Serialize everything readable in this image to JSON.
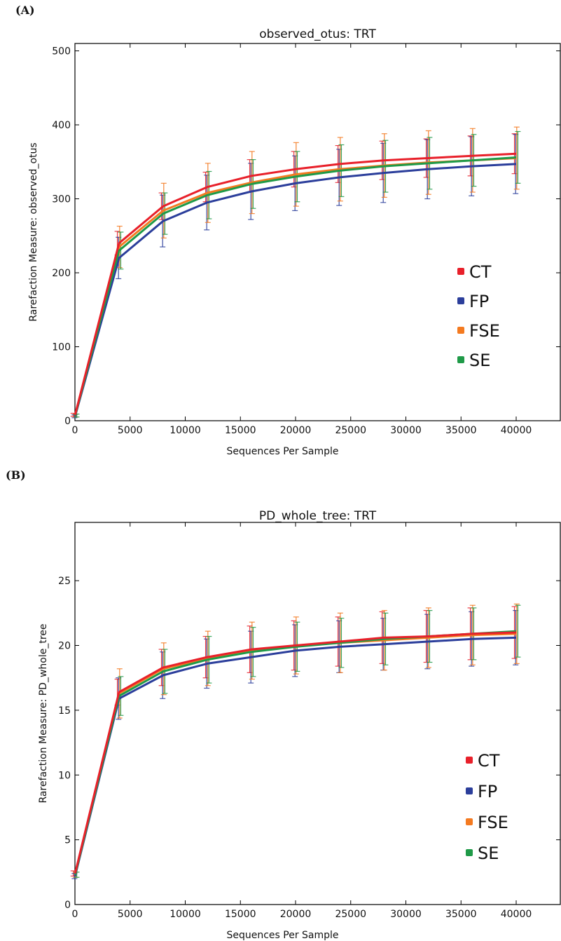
{
  "figure": {
    "panel_labels": [
      "(A)",
      "(B)"
    ]
  },
  "chart_data": [
    {
      "type": "line",
      "panel": "(A)",
      "title": "observed_otus: TRT",
      "xlabel": "Sequences Per Sample",
      "ylabel": "Rarefaction Measure: observed_otus",
      "xlim": [
        0,
        44000
      ],
      "ylim": [
        0,
        510
      ],
      "xticks": [
        0,
        5000,
        10000,
        15000,
        20000,
        25000,
        30000,
        35000,
        40000
      ],
      "yticks": [
        0,
        100,
        200,
        300,
        400,
        500
      ],
      "grid": false,
      "legend_position": "lower-right",
      "x": [
        10,
        4000,
        8000,
        12000,
        16000,
        20000,
        24000,
        28000,
        32000,
        36000,
        40000
      ],
      "series": [
        {
          "name": "CT",
          "color": "#e8202a",
          "values": [
            8,
            240,
            290,
            316,
            331,
            340,
            347,
            352,
            355,
            358,
            361
          ],
          "err": [
            2,
            16,
            18,
            20,
            22,
            24,
            25,
            26,
            26,
            27,
            27
          ]
        },
        {
          "name": "FP",
          "color": "#2b3e9b",
          "values": [
            6,
            220,
            270,
            295,
            310,
            321,
            329,
            335,
            340,
            344,
            347
          ],
          "err": [
            2,
            28,
            35,
            37,
            38,
            37,
            38,
            40,
            40,
            40,
            40
          ]
        },
        {
          "name": "FSE",
          "color": "#f47a20",
          "values": [
            7,
            235,
            284,
            308,
            322,
            333,
            340,
            345,
            349,
            352,
            355
          ],
          "err": [
            2,
            28,
            37,
            40,
            42,
            43,
            43,
            43,
            43,
            43,
            42
          ]
        },
        {
          "name": "SE",
          "color": "#1f9a48",
          "values": [
            7,
            230,
            280,
            305,
            320,
            330,
            338,
            344,
            348,
            352,
            356
          ],
          "err": [
            2,
            25,
            28,
            32,
            33,
            34,
            35,
            35,
            35,
            35,
            35
          ]
        }
      ]
    },
    {
      "type": "line",
      "panel": "(B)",
      "title": "PD_whole_tree: TRT",
      "xlabel": "Sequences Per Sample",
      "ylabel": "Rarefaction Measure: PD_whole_tree",
      "xlim": [
        0,
        44000
      ],
      "ylim": [
        0,
        29.5
      ],
      "xticks": [
        0,
        5000,
        10000,
        15000,
        20000,
        25000,
        30000,
        35000,
        40000
      ],
      "yticks": [
        0,
        5,
        10,
        15,
        20,
        25
      ],
      "grid": false,
      "legend_position": "lower-right",
      "x": [
        10,
        4000,
        8000,
        12000,
        16000,
        20000,
        24000,
        28000,
        32000,
        36000,
        40000
      ],
      "series": [
        {
          "name": "CT",
          "color": "#e8202a",
          "values": [
            2.4,
            16.4,
            18.3,
            19.1,
            19.7,
            20.0,
            20.3,
            20.6,
            20.7,
            20.9,
            21.0
          ],
          "err": [
            0.2,
            1.0,
            1.4,
            1.6,
            1.8,
            1.9,
            1.9,
            2.0,
            2.0,
            2.0,
            2.0
          ]
        },
        {
          "name": "FP",
          "color": "#2b3e9b",
          "values": [
            2.2,
            15.9,
            17.7,
            18.6,
            19.1,
            19.6,
            19.9,
            20.1,
            20.3,
            20.5,
            20.6
          ],
          "err": [
            0.2,
            1.6,
            1.8,
            1.9,
            2.0,
            2.0,
            2.0,
            2.0,
            2.1,
            2.1,
            2.1
          ]
        },
        {
          "name": "FSE",
          "color": "#f47a20",
          "values": [
            2.3,
            16.3,
            18.2,
            19.0,
            19.6,
            20.0,
            20.2,
            20.4,
            20.6,
            20.8,
            20.9
          ],
          "err": [
            0.2,
            1.9,
            2.0,
            2.1,
            2.2,
            2.2,
            2.3,
            2.3,
            2.3,
            2.3,
            2.3
          ]
        },
        {
          "name": "SE",
          "color": "#1f9a48",
          "values": [
            2.3,
            16.1,
            18.0,
            18.9,
            19.5,
            19.9,
            20.2,
            20.5,
            20.7,
            20.9,
            21.1
          ],
          "err": [
            0.2,
            1.5,
            1.7,
            1.8,
            1.9,
            1.9,
            1.9,
            2.0,
            2.0,
            2.0,
            2.0
          ]
        }
      ]
    }
  ]
}
